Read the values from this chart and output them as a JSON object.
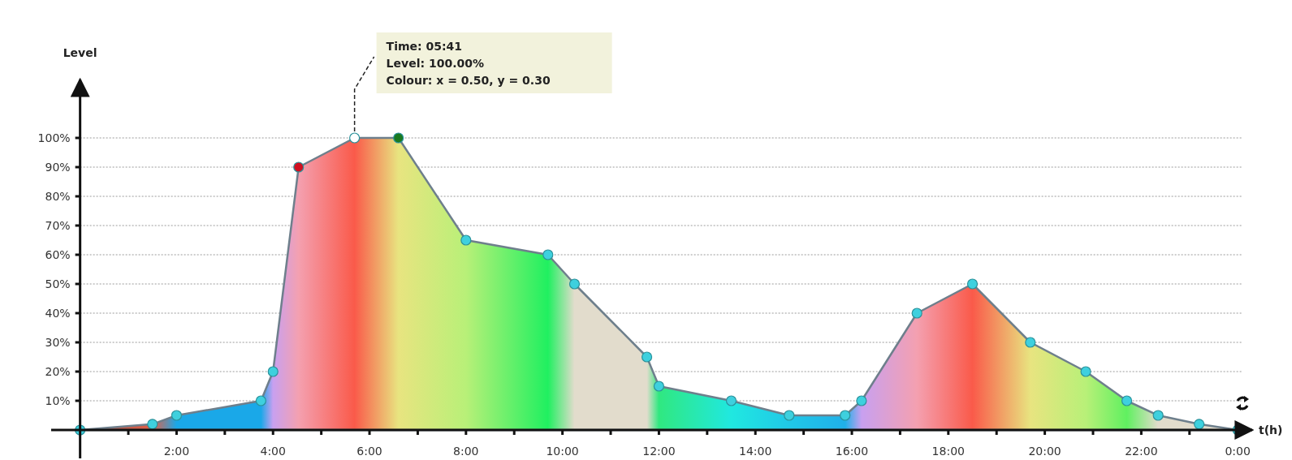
{
  "chart_data": {
    "type": "area",
    "ylabel": "Level",
    "xlabel": "t(h)",
    "xlim": [
      -0.6,
      24.3
    ],
    "ylim": [
      0,
      120
    ],
    "xticks": [
      {
        "value": 1,
        "label": null
      },
      {
        "value": 2,
        "label": "2:00"
      },
      {
        "value": 3,
        "label": null
      },
      {
        "value": 4,
        "label": "4:00"
      },
      {
        "value": 5,
        "label": null
      },
      {
        "value": 6,
        "label": "6:00"
      },
      {
        "value": 7,
        "label": null
      },
      {
        "value": 8,
        "label": "8:00"
      },
      {
        "value": 9,
        "label": null
      },
      {
        "value": 10,
        "label": "10:00"
      },
      {
        "value": 11,
        "label": null
      },
      {
        "value": 12,
        "label": "12:00"
      },
      {
        "value": 13,
        "label": null
      },
      {
        "value": 14,
        "label": "14:00"
      },
      {
        "value": 15,
        "label": null
      },
      {
        "value": 16,
        "label": "16:00"
      },
      {
        "value": 17,
        "label": null
      },
      {
        "value": 18,
        "label": "18:00"
      },
      {
        "value": 19,
        "label": null
      },
      {
        "value": 20,
        "label": "20:00"
      },
      {
        "value": 21,
        "label": null
      },
      {
        "value": 22,
        "label": "22:00"
      },
      {
        "value": 23,
        "label": null
      },
      {
        "value": 24,
        "label": "0:00"
      }
    ],
    "yticks": [
      {
        "value": 10,
        "label": "10%"
      },
      {
        "value": 20,
        "label": "20%"
      },
      {
        "value": 30,
        "label": "30%"
      },
      {
        "value": 40,
        "label": "40%"
      },
      {
        "value": 50,
        "label": "50%"
      },
      {
        "value": 60,
        "label": "60%"
      },
      {
        "value": 70,
        "label": "70%"
      },
      {
        "value": 80,
        "label": "80%"
      },
      {
        "value": 90,
        "label": "90%"
      },
      {
        "value": 100,
        "label": "100%"
      }
    ],
    "grid": "y",
    "line_style": "solid",
    "series": [
      {
        "color": "#6e7f8c",
        "x": [
          0,
          1.5,
          2,
          3.75,
          4,
          4.53,
          5.69,
          6.6,
          8,
          9.7,
          10.25,
          11.75,
          12,
          13.5,
          14.7,
          15.86,
          16.2,
          17.35,
          18.5,
          19.7,
          20.85,
          21.7,
          22.35,
          23.2,
          24
        ],
        "values": [
          0,
          2,
          5,
          10,
          20,
          90,
          100,
          100,
          65,
          60,
          50,
          25,
          15,
          10,
          5,
          5,
          10,
          40,
          50,
          30,
          20,
          10,
          5,
          2,
          0
        ],
        "colors": [
          "#a0504a",
          "#e06048",
          "#1aa8e8",
          "#1aa8e8",
          "#c8a0f0",
          "#f4a0b0",
          "#fa5a4a",
          "#e8e480",
          "#b8f078",
          "#20f060",
          "#e2dccc",
          "#e2dccc",
          "#30e880",
          "#20e8e0",
          "#20c8e8",
          "#20b0e8",
          "#c8a0f0",
          "#f4a0b0",
          "#fa5a4a",
          "#e8e480",
          "#b8f078",
          "#60f060",
          "#e2dccc",
          "#e2dccc",
          "#e2dccc"
        ]
      },
      {
        "type": "scatter",
        "marker": "circle",
        "color": "#3ed0de",
        "x": [
          0,
          1.5,
          2,
          3.75,
          4,
          4.53,
          5.69,
          6.6,
          8,
          9.7,
          10.25,
          11.75,
          12,
          13.5,
          14.7,
          15.86,
          16.2,
          17.35,
          18.5,
          19.7,
          20.85,
          21.7,
          22.35,
          23.2,
          24
        ],
        "values": [
          0,
          2,
          5,
          10,
          20,
          90,
          100,
          100,
          65,
          60,
          50,
          25,
          15,
          10,
          5,
          5,
          10,
          40,
          50,
          30,
          20,
          10,
          5,
          2,
          0
        ],
        "colors": [
          "#3ed0de",
          "#3ed0de",
          "#3ed0de",
          "#3ed0de",
          "#3ed0de",
          "#d01020",
          "#ffffff",
          "#1a7a20",
          "#3ed0de",
          "#3ed0de",
          "#3ed0de",
          "#3ed0de",
          "#3ed0de",
          "#3ed0de",
          "#3ed0de",
          "#3ed0de",
          "#3ed0de",
          "#3ed0de",
          "#3ed0de",
          "#3ed0de",
          "#3ed0de",
          "#3ed0de",
          "#3ed0de",
          "#3ed0de",
          "#3ed0de"
        ]
      }
    ],
    "annotations": [
      {
        "text": "Time: 05:41\nLevel: 100.00%\nColour: x = 0.50, y = 0.30",
        "x": 5.69,
        "y": 100
      }
    ]
  }
}
